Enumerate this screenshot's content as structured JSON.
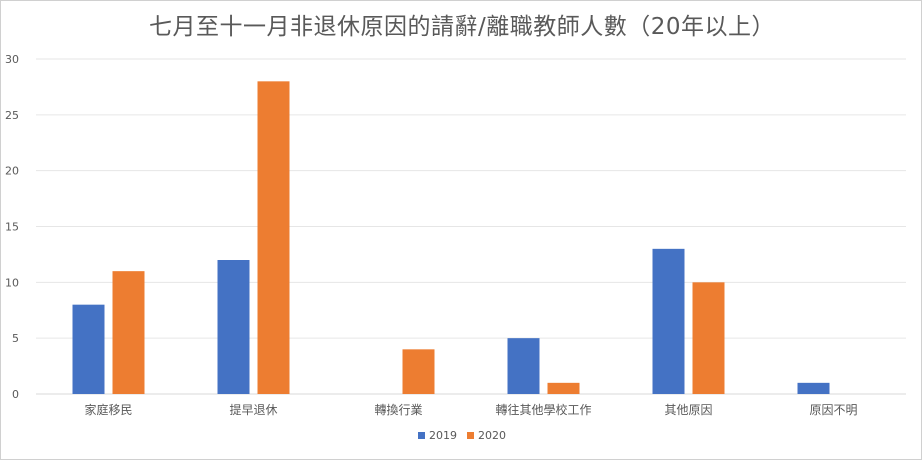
{
  "chart_data": {
    "type": "bar",
    "title": "七月至十一月非退休原因的請辭/離職教師人數（20年以上）",
    "categories": [
      "家庭移民",
      "提早退休",
      "轉換行業",
      "轉往其他學校工作",
      "其他原因",
      "原因不明"
    ],
    "series": [
      {
        "name": "2019",
        "color": "#4472C4",
        "values": [
          8,
          12,
          0,
          5,
          13,
          1
        ]
      },
      {
        "name": "2020",
        "color": "#ED7D31",
        "values": [
          11,
          28,
          4,
          1,
          10,
          0
        ]
      }
    ],
    "ylim": [
      0,
      30
    ],
    "yticks": [
      0,
      5,
      10,
      15,
      20,
      25,
      30
    ],
    "grid": true,
    "legend_position": "bottom"
  }
}
